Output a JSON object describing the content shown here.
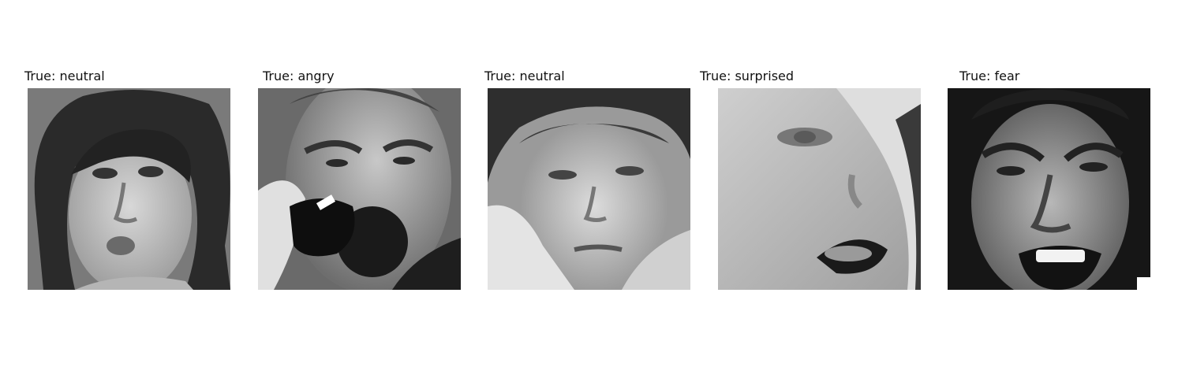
{
  "figure": {
    "panels": [
      {
        "title": "True: neutral",
        "image_description": "grayscale face of a young woman with dark curly hair, lips pursed"
      },
      {
        "title": "True: angry",
        "image_description": "grayscale face of a man yelling into a telephone receiver"
      },
      {
        "title": "True: neutral",
        "image_description": "grayscale face of a bored boy resting his cheek on his hand"
      },
      {
        "title": "True: surprised",
        "image_description": "grayscale close-up face, mouth open with tongue out, tilted"
      },
      {
        "title": "True: fear",
        "image_description": "grayscale face of a man grimacing, mouth wide open"
      }
    ]
  }
}
